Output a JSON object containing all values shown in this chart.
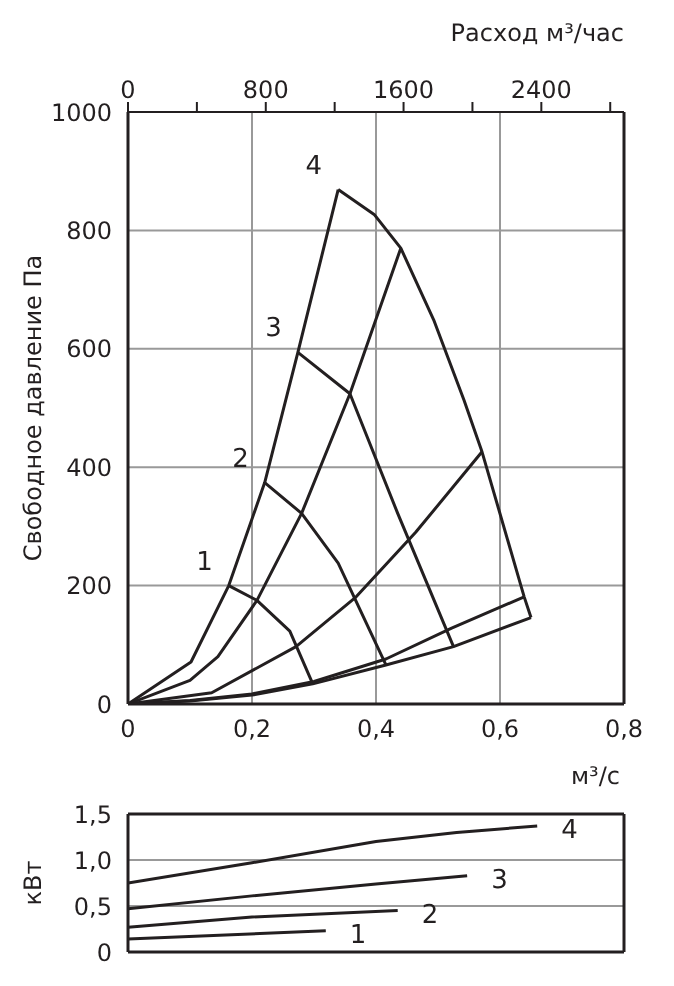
{
  "chart_data": [
    {
      "type": "line",
      "ylabel": "Свободное давление Па",
      "xlabel": "м³/с",
      "x2label": "Расход м³/час",
      "xlim": [
        0,
        0.8
      ],
      "xticks": [
        0,
        {
          "value": 0.2,
          "label": "0,2"
        },
        {
          "value": 0.4,
          "label": "0,4"
        },
        {
          "value": 0.6,
          "label": "0,6"
        },
        {
          "value": 0.8,
          "label": "0,8"
        }
      ],
      "x2lim": [
        0,
        2880
      ],
      "x2ticks": [
        0,
        {
          "value": 400,
          "label": null
        },
        800,
        {
          "value": 1200,
          "label": null
        },
        1600,
        {
          "value": 2000,
          "label": null
        },
        2400,
        {
          "value": 2800,
          "label": null
        }
      ],
      "ylim": [
        0,
        1000
      ],
      "yticks": [
        0,
        200,
        400,
        600,
        800,
        1000
      ],
      "grid": true,
      "legend": false,
      "marker": "none",
      "line_style": "solid",
      "series": [
        {
          "name": "1",
          "color": "#231f20",
          "x": [
            0.1625,
            0.208,
            0.261,
            0.298
          ],
          "values": [
            200,
            175,
            123,
            34
          ]
        },
        {
          "name": "2",
          "color": "#231f20",
          "x": [
            0.2205,
            0.28,
            0.339,
            0.416
          ],
          "values": [
            374,
            322,
            238,
            66
          ]
        },
        {
          "name": "3",
          "color": "#231f20",
          "x": [
            0.274,
            0.358,
            0.435,
            0.525
          ],
          "values": [
            594,
            524,
            322,
            97
          ]
        },
        {
          "name": "4",
          "color": "#231f20",
          "x": [
            0.339,
            0.397,
            0.44,
            0.493,
            0.542,
            0.571,
            0.639,
            0.65
          ],
          "values": [
            869,
            827,
            770,
            649,
            513,
            426,
            181,
            146
          ]
        },
        {
          "color": "#231f20",
          "x": [
            0,
            0.1016,
            0.1625,
            0.2205,
            0.274,
            0.339
          ],
          "values": [
            0,
            71,
            200,
            374,
            594,
            869
          ]
        },
        {
          "color": "#231f20",
          "x": [
            0,
            0.1,
            0.145,
            0.208,
            0.28,
            0.358,
            0.44
          ],
          "values": [
            0,
            40,
            80,
            175,
            322,
            524,
            770
          ]
        },
        {
          "color": "#231f20",
          "x": [
            0,
            0.135,
            0.271,
            0.368,
            0.464,
            0.571
          ],
          "values": [
            0,
            19,
            97,
            181,
            290,
            426
          ]
        },
        {
          "color": "#231f20",
          "x": [
            0,
            0.1,
            0.2,
            0.3,
            0.416,
            0.522,
            0.639
          ],
          "values": [
            0,
            6,
            17,
            38,
            76,
            128,
            181
          ]
        },
        {
          "color": "#231f20",
          "x": [
            0,
            0.1,
            0.2,
            0.298,
            0.416,
            0.525,
            0.65
          ],
          "values": [
            0,
            5,
            15,
            34,
            66,
            97,
            146
          ]
        }
      ]
    },
    {
      "type": "line",
      "ylabel": "кВт",
      "xlim": [
        0,
        0.8
      ],
      "ylim": [
        0,
        1.5
      ],
      "yticks": [
        0,
        {
          "value": 0.5,
          "label": "0,5"
        },
        {
          "value": 1,
          "label": "1,0"
        },
        {
          "value": 1.5,
          "label": "1,5"
        }
      ],
      "tick_labels": "y",
      "grid": true,
      "legend": false,
      "marker": "none",
      "line_style": "solid",
      "series": [
        {
          "name": "1",
          "color": "#231f20",
          "x": [
            0,
            0.319
          ],
          "values": [
            0.14,
            0.23
          ]
        },
        {
          "name": "2",
          "color": "#231f20",
          "x": [
            0,
            0.2,
            0.435
          ],
          "values": [
            0.27,
            0.38,
            0.45
          ]
        },
        {
          "name": "3",
          "color": "#231f20",
          "x": [
            0,
            0.2,
            0.4,
            0.547
          ],
          "values": [
            0.47,
            0.61,
            0.74,
            0.83
          ]
        },
        {
          "name": "4",
          "color": "#231f20",
          "x": [
            0,
            0.2,
            0.4,
            0.53,
            0.66
          ],
          "values": [
            0.75,
            0.97,
            1.2,
            1.3,
            1.37
          ]
        }
      ]
    }
  ]
}
